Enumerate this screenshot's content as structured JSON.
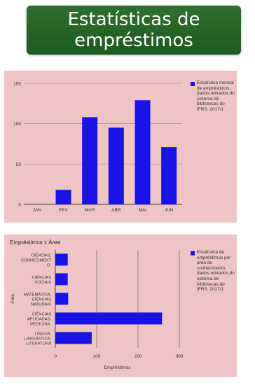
{
  "header": {
    "title": "Estatísticas de empréstimos"
  },
  "colors": {
    "bar": "#1a13e6",
    "panel": "#efc4c4",
    "banner": "#236123"
  },
  "chart_data": [
    {
      "type": "bar",
      "orientation": "vertical",
      "title": "",
      "categories": [
        "JAN",
        "FEV",
        "MAR",
        "ABR",
        "MAI",
        "JUN"
      ],
      "series": [
        {
          "name": "Estatística mensal de empréstimos, dados retirados do sistema de bibliotecas do IFRS. 2017/1",
          "values": [
            0,
            18,
            108,
            95,
            129,
            71
          ]
        }
      ],
      "ylim": [
        0,
        150
      ],
      "yticks": [
        0,
        50,
        100,
        150
      ],
      "xlabel": "",
      "ylabel": "",
      "grid": true,
      "legend_position": "right"
    },
    {
      "type": "bar",
      "orientation": "horizontal",
      "title": "Empréstimos x Área",
      "categories": [
        "CIÊNCIA E CONHECIMENTO.",
        "CIÊNCIAS SOCIAIS",
        "MATEMÁTICA. CIÊNCIAS NATURAIS",
        "CIÊNCIAS APLICADAS. MEDICINA.",
        "LÍNGUA. LINGUÍSTICA. LITERATURA"
      ],
      "category_lines": [
        [
          "CIÊNCIA E",
          "CONHECIMENT",
          "O."
        ],
        [
          "CIÊNCIAS",
          "SOCIAIS"
        ],
        [
          "MATEMÁTICA.",
          "CIÊNCIAS",
          "NATURAIS"
        ],
        [
          "CIÊNCIAS",
          "APLICADAS.",
          "MEDICINA."
        ],
        [
          "LÍNGUA.",
          "LINGUÍSTICA.",
          "LITERATURA"
        ]
      ],
      "series": [
        {
          "name": "Estatística de empréstimos por área de conhecimento, dados retirados do sistema de bibliotecas do IFRS. 2017/1",
          "values": [
            30,
            30,
            31,
            258,
            88
          ]
        }
      ],
      "xlim": [
        0,
        300
      ],
      "xticks": [
        0,
        100,
        200,
        300
      ],
      "xlabel": "Empréstimos",
      "ylabel": "Área",
      "grid": true,
      "legend_position": "right"
    }
  ]
}
